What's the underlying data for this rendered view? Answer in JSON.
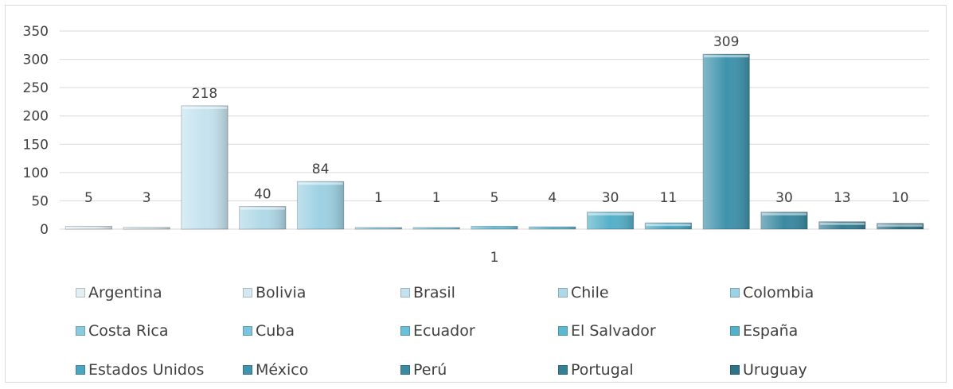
{
  "chart_data": {
    "type": "bar",
    "title": "",
    "xlabel": "",
    "ylabel": "",
    "ylim": [
      0,
      350
    ],
    "yticks": [
      "0",
      "50",
      "100",
      "150",
      "200",
      "250",
      "300",
      "350"
    ],
    "grid": true,
    "legend_position": "bottom",
    "categories": [
      "Argentina",
      "Bolivia",
      "Brasil",
      "Chile",
      "Colombia",
      "Costa Rica",
      "Cuba",
      "Ecuador",
      "El Salvador",
      "España",
      "Estados Unidos",
      "México",
      "Perú",
      "Portugal",
      "Uruguay"
    ],
    "values": [
      5,
      3,
      218,
      40,
      84,
      1,
      1,
      5,
      4,
      30,
      11,
      309,
      30,
      13,
      10
    ],
    "data_labels": [
      "5",
      "3",
      "218",
      "40",
      "84",
      "1",
      "1",
      "5",
      "4",
      "30",
      "11",
      "309",
      "30",
      "13",
      "10"
    ],
    "extra_label": "1",
    "colors": [
      "#e3eef3",
      "#d6e9f0",
      "#c5e3ee",
      "#b0d9e7",
      "#9dd1e3",
      "#8bcbe0",
      "#7ac5dd",
      "#6bbfd8",
      "#5fb8d1",
      "#55b0c9",
      "#4aa5bf",
      "#3f93ac",
      "#3a8aa2",
      "#357f96",
      "#2f7389"
    ]
  }
}
